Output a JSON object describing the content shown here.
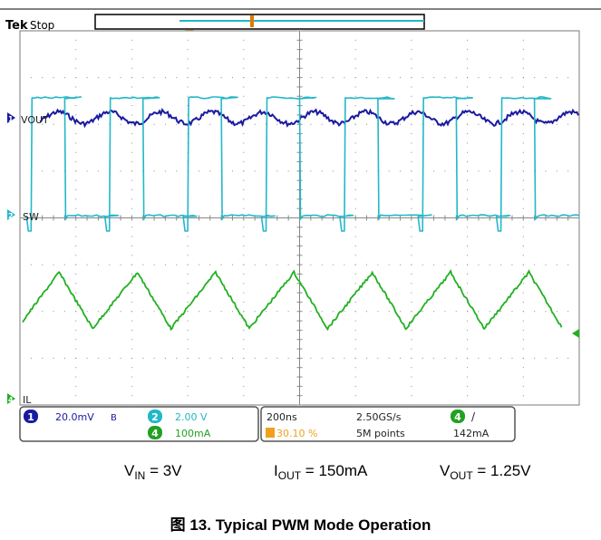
{
  "header": {
    "brand": "Tek",
    "run_state": "Stop"
  },
  "trigger_marker": "T",
  "channels": [
    {
      "id": "1",
      "label": "VOUT",
      "color": "#1a1aa0"
    },
    {
      "id": "2",
      "label": "SW",
      "color": "#22b8c8"
    },
    {
      "id": "4",
      "label": "IL",
      "color": "#22b022"
    }
  ],
  "readout": {
    "ch1_num": "1",
    "ch1_scale": "20.0mV",
    "bw_symbol": "B",
    "ch2_num": "2",
    "ch2_scale": "2.00 V",
    "ch4_num": "4",
    "ch4_scale": "100mA",
    "timebase": "200ns",
    "trigger_pos": "30.10 %",
    "sample_rate": "2.50GS/s",
    "record_length": "5M points",
    "trig_source": "4",
    "trig_slope": "/",
    "trig_level": "142mA"
  },
  "conditions": {
    "vin_main": "V",
    "vin_sub": "IN",
    "vin_value": " = 3V",
    "iout_main": "I",
    "iout_sub": "OUT",
    "iout_value": " = 150mA",
    "vout_main": "V",
    "vout_sub": "OUT",
    "vout_value": " = 1.25V"
  },
  "figure_title": "图 13. Typical PWM Mode Operation",
  "chart_data": {
    "type": "line",
    "title": "",
    "time_per_division_ns": 200,
    "divisions_x": 10,
    "divisions_y": 8,
    "grid": true,
    "series": [
      {
        "name": "VOUT",
        "channel": 1,
        "shape": "ripple",
        "ripple_mv_pp": 10
      },
      {
        "name": "SW",
        "channel": 2,
        "shape": "square",
        "high_v": 5.0,
        "low_v": 0.0,
        "rising_edges_ns": [
          40,
          320,
          600,
          880,
          1160,
          1440,
          1720
        ],
        "falling_edges_ns": [
          160,
          440,
          720,
          1000,
          1280,
          1560,
          1840
        ]
      },
      {
        "name": "IL",
        "channel": 4,
        "shape": "triangle",
        "min_ma": 150,
        "max_ma": 270,
        "valleys_ns": [
          -10,
          260,
          540,
          820,
          1100,
          1380,
          1660,
          1940
        ],
        "peaks_ns": [
          140,
          420,
          700,
          980,
          1260,
          1540,
          1820
        ]
      }
    ]
  }
}
